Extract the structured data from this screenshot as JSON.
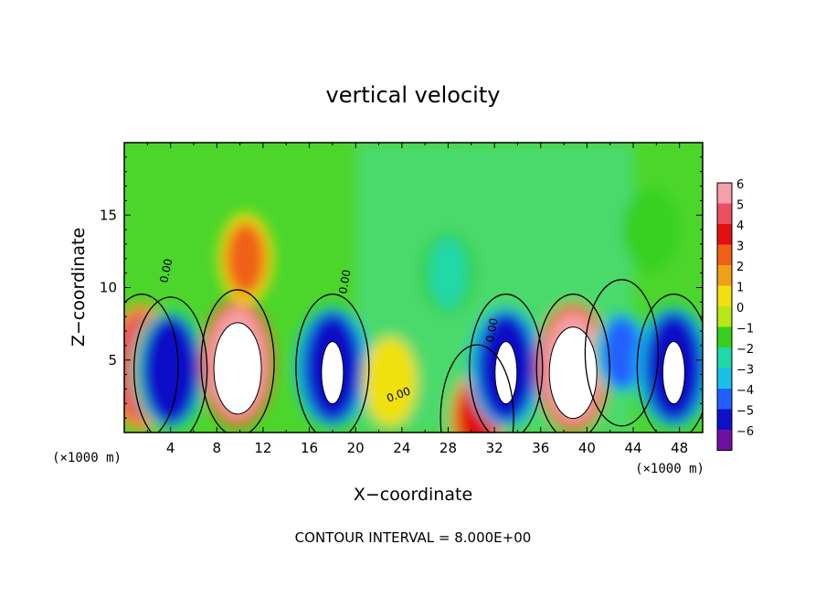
{
  "chart_data": {
    "type": "heatmap",
    "title": "vertical velocity",
    "xlabel": "X−coordinate",
    "ylabel": "Z−coordinate",
    "x_unit_left": "(×1000 m)",
    "x_unit_right": "(×1000 m)",
    "x_ticks": [
      "4",
      "8",
      "12",
      "16",
      "20",
      "24",
      "28",
      "32",
      "36",
      "40",
      "44",
      "48"
    ],
    "y_ticks": [
      "5",
      "10",
      "15"
    ],
    "xlim": [
      0,
      50
    ],
    "ylim": [
      0,
      20
    ],
    "colorbar_ticks": [
      "6",
      "5",
      "4",
      "3",
      "2",
      "1",
      "0",
      "−1",
      "−2",
      "−3",
      "−4",
      "−5",
      "−6"
    ],
    "colorbar_colors": [
      "#f4a0a8",
      "#ec5060",
      "#e01010",
      "#f06018",
      "#f0a018",
      "#f0e010",
      "#b8e818",
      "#38d020",
      "#20d8a8",
      "#18c0e8",
      "#2060ff",
      "#1010c8",
      "#7010a0"
    ],
    "contour_labels": [
      "0.00",
      "0.00",
      "0.00",
      "0.00"
    ],
    "footer": "CONTOUR INTERVAL = 8.000E+00",
    "features": [
      {
        "x": 1.5,
        "z": 4.5,
        "w": 0.8
      },
      {
        "x": 4.0,
        "z": 4.3,
        "w": -0.8
      },
      {
        "x": 9.8,
        "z": 4.8,
        "w": 1.0
      },
      {
        "x": 10.5,
        "z": 12.0,
        "w": 0.45
      },
      {
        "x": 18.0,
        "z": 4.5,
        "w": -0.9
      },
      {
        "x": 23.0,
        "z": 3.5,
        "w": 0.2
      },
      {
        "x": 28.0,
        "z": 11.0,
        "w": -0.25
      },
      {
        "x": 30.5,
        "z": 1.0,
        "w": 0.6
      },
      {
        "x": 33.0,
        "z": 4.5,
        "w": -0.9
      },
      {
        "x": 38.8,
        "z": 4.5,
        "w": 1.0
      },
      {
        "x": 43.0,
        "z": 5.5,
        "w": -0.6
      },
      {
        "x": 47.5,
        "z": 4.5,
        "w": -0.9
      },
      {
        "x": 45.5,
        "z": 14.0,
        "w": -0.2
      }
    ]
  }
}
